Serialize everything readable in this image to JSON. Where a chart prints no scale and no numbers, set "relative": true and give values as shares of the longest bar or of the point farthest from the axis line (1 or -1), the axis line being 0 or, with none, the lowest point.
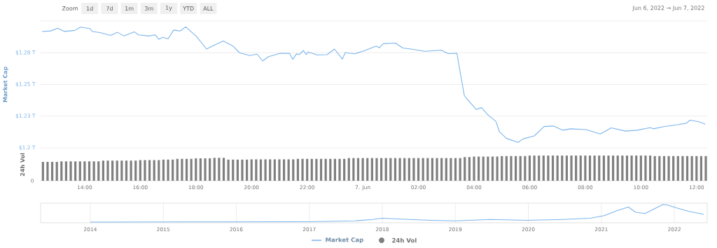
{
  "chart_data": [
    {
      "type": "line",
      "ylabel": "Market Cap",
      "tick_labels": "y",
      "grid": "y",
      "legend": "bottom",
      "marker": "none",
      "annotations": [
        "Zoom",
        "1d",
        "7d",
        "1m",
        "3m",
        "1y",
        "YTD",
        "ALL",
        "Jun 6, 2022 → Jun 7, 2022"
      ],
      "xlim": [
        "2022-06-06T12:25",
        "2022-06-07T12:23"
      ],
      "ylim": [
        1.2,
        1.3
      ],
      "yticks": [
        {
          "value": 1.2,
          "label": "$1.2 T"
        },
        {
          "value": 1.225,
          "label": "$1.23 T"
        },
        {
          "value": 1.25,
          "label": "$1.25 T"
        },
        {
          "value": 1.275,
          "label": "$1.28 T"
        },
        {
          "value": 1.3,
          "label": null
        }
      ],
      "x": [
        "2022-06-06T12:28",
        "2022-06-06T12:47",
        "2022-06-06T13:02",
        "2022-06-06T13:16",
        "2022-06-06T13:39",
        "2022-06-06T13:51",
        "2022-06-06T14:11",
        "2022-06-06T14:17",
        "2022-06-06T14:33",
        "2022-06-06T14:56",
        "2022-06-06T15:11",
        "2022-06-06T15:25",
        "2022-06-06T15:47",
        "2022-06-06T15:56",
        "2022-06-06T16:19",
        "2022-06-06T16:32",
        "2022-06-06T16:40",
        "2022-06-06T16:49",
        "2022-06-06T17:00",
        "2022-06-06T17:12",
        "2022-06-06T17:26",
        "2022-06-06T17:38",
        "2022-06-06T18:01",
        "2022-06-06T18:23",
        "2022-06-06T18:38",
        "2022-06-06T18:59",
        "2022-06-06T19:20",
        "2022-06-06T19:34",
        "2022-06-06T19:56",
        "2022-06-06T20:12",
        "2022-06-06T20:24",
        "2022-06-06T20:36",
        "2022-06-06T21:02",
        "2022-06-06T21:22",
        "2022-06-06T21:29",
        "2022-06-06T21:37",
        "2022-06-06T21:43",
        "2022-06-06T21:52",
        "2022-06-06T21:58",
        "2022-06-06T22:02",
        "2022-06-06T22:22",
        "2022-06-06T22:43",
        "2022-06-06T22:59",
        "2022-06-06T23:16",
        "2022-06-06T23:22",
        "2022-06-06T23:43",
        "2022-06-07T00:03",
        "2022-06-07T00:29",
        "2022-06-07T00:36",
        "2022-06-07T00:44",
        "2022-06-07T01:11",
        "2022-06-07T01:26",
        "2022-06-07T01:44",
        "2022-06-07T02:14",
        "2022-06-07T02:49",
        "2022-06-07T03:04",
        "2022-06-07T03:23",
        "2022-06-07T03:30",
        "2022-06-07T03:39",
        "2022-06-07T03:45",
        "2022-06-07T04:05",
        "2022-06-07T04:16",
        "2022-06-07T04:31",
        "2022-06-07T04:47",
        "2022-06-07T04:55",
        "2022-06-07T05:10",
        "2022-06-07T05:35",
        "2022-06-07T05:46",
        "2022-06-07T06:10",
        "2022-06-07T06:31",
        "2022-06-07T06:51",
        "2022-06-07T07:11",
        "2022-06-07T07:29",
        "2022-06-07T08:02",
        "2022-06-07T08:32",
        "2022-06-07T08:56",
        "2022-06-07T09:27",
        "2022-06-07T09:52",
        "2022-06-07T10:20",
        "2022-06-07T10:27",
        "2022-06-07T10:49",
        "2022-06-07T11:19",
        "2022-06-07T11:38",
        "2022-06-07T11:46",
        "2022-06-07T12:05",
        "2022-06-07T12:19"
      ],
      "series": [
        {
          "name": "Market Cap",
          "color": "#7cb5ec",
          "values": [
            1.2917,
            1.2922,
            1.2943,
            1.2918,
            1.2926,
            1.2952,
            1.2941,
            1.2917,
            1.2909,
            1.2887,
            1.2911,
            1.2882,
            1.2915,
            1.2891,
            1.2882,
            1.2891,
            1.2857,
            1.2872,
            1.2859,
            1.2929,
            1.2921,
            1.2954,
            1.2879,
            1.2779,
            1.2806,
            1.2843,
            1.2802,
            1.275,
            1.2728,
            1.2739,
            1.2685,
            1.2718,
            1.2746,
            1.2744,
            1.2698,
            1.2741,
            1.2735,
            1.2768,
            1.2735,
            1.2756,
            1.2732,
            1.2735,
            1.2779,
            1.27,
            1.275,
            1.2742,
            1.2765,
            1.2802,
            1.2789,
            1.2821,
            1.2826,
            1.2787,
            1.2779,
            1.2761,
            1.2771,
            1.2743,
            1.2746,
            1.2598,
            1.2413,
            1.2385,
            1.2302,
            1.2317,
            1.2256,
            1.2209,
            1.2126,
            1.2074,
            1.2043,
            1.2071,
            1.2094,
            1.2168,
            1.2172,
            1.2139,
            1.215,
            1.2144,
            1.2109,
            1.2157,
            1.2132,
            1.2139,
            1.2159,
            1.215,
            1.2167,
            1.2182,
            1.2194,
            1.2218,
            1.2206,
            1.2187
          ]
        }
      ]
    },
    {
      "type": "bar",
      "relative": true,
      "ylabel": "24h Vol",
      "tick_labels": "x",
      "legend": "bottom",
      "annotations": [
        "0"
      ],
      "xlim": [
        "2022-06-06T12:25",
        "2022-06-07T12:23"
      ],
      "xticks": [
        {
          "value": "2022-06-06T14:00",
          "label": "14:00"
        },
        {
          "value": "2022-06-06T16:00",
          "label": "16:00"
        },
        {
          "value": "2022-06-06T18:00",
          "label": "18:00"
        },
        {
          "value": "2022-06-06T20:00",
          "label": "20:00"
        },
        {
          "value": "2022-06-06T22:00",
          "label": "22:00"
        },
        {
          "value": "2022-06-07T00:00",
          "label": "7. Jun"
        },
        {
          "value": "2022-06-07T02:00",
          "label": "02:00"
        },
        {
          "value": "2022-06-07T04:00",
          "label": "04:00"
        },
        {
          "value": "2022-06-07T06:00",
          "label": "06:00"
        },
        {
          "value": "2022-06-07T08:00",
          "label": "08:00"
        },
        {
          "value": "2022-06-07T10:00",
          "label": "10:00"
        },
        {
          "value": "2022-06-07T12:00",
          "label": "12:00"
        }
      ],
      "x": [
        "2022-06-06T12:30",
        "2022-06-06T12:40",
        "2022-06-06T12:50",
        "2022-06-06T13:00",
        "2022-06-06T13:10",
        "2022-06-06T13:20",
        "2022-06-06T13:30",
        "2022-06-06T13:40",
        "2022-06-06T13:50",
        "2022-06-06T14:00",
        "2022-06-06T14:10",
        "2022-06-06T14:20",
        "2022-06-06T14:30",
        "2022-06-06T14:40",
        "2022-06-06T14:50",
        "2022-06-06T15:00",
        "2022-06-06T15:10",
        "2022-06-06T15:20",
        "2022-06-06T15:30",
        "2022-06-06T15:40",
        "2022-06-06T15:50",
        "2022-06-06T16:00",
        "2022-06-06T16:10",
        "2022-06-06T16:20",
        "2022-06-06T16:30",
        "2022-06-06T16:40",
        "2022-06-06T16:50",
        "2022-06-06T17:00",
        "2022-06-06T17:10",
        "2022-06-06T17:20",
        "2022-06-06T17:30",
        "2022-06-06T17:40",
        "2022-06-06T17:50",
        "2022-06-06T18:00",
        "2022-06-06T18:10",
        "2022-06-06T18:20",
        "2022-06-06T18:30",
        "2022-06-06T18:40",
        "2022-06-06T18:50",
        "2022-06-06T19:00",
        "2022-06-06T19:10",
        "2022-06-06T19:20",
        "2022-06-06T19:30",
        "2022-06-06T19:40",
        "2022-06-06T19:50",
        "2022-06-06T20:00",
        "2022-06-06T20:10",
        "2022-06-06T20:20",
        "2022-06-06T20:30",
        "2022-06-06T20:40",
        "2022-06-06T20:50",
        "2022-06-06T21:00",
        "2022-06-06T21:10",
        "2022-06-06T21:20",
        "2022-06-06T21:30",
        "2022-06-06T21:40",
        "2022-06-06T21:50",
        "2022-06-06T22:00",
        "2022-06-06T22:10",
        "2022-06-06T22:20",
        "2022-06-06T22:30",
        "2022-06-06T22:40",
        "2022-06-06T22:50",
        "2022-06-06T23:00",
        "2022-06-06T23:10",
        "2022-06-06T23:20",
        "2022-06-06T23:30",
        "2022-06-06T23:40",
        "2022-06-06T23:50",
        "2022-06-07T00:00",
        "2022-06-07T00:10",
        "2022-06-07T00:20",
        "2022-06-07T00:30",
        "2022-06-07T00:40",
        "2022-06-07T00:50",
        "2022-06-07T01:00",
        "2022-06-07T01:10",
        "2022-06-07T01:20",
        "2022-06-07T01:30",
        "2022-06-07T01:40",
        "2022-06-07T01:50",
        "2022-06-07T02:00",
        "2022-06-07T02:10",
        "2022-06-07T02:20",
        "2022-06-07T02:30",
        "2022-06-07T02:40",
        "2022-06-07T02:50",
        "2022-06-07T03:00",
        "2022-06-07T03:10",
        "2022-06-07T03:20",
        "2022-06-07T03:30",
        "2022-06-07T03:40",
        "2022-06-07T03:50",
        "2022-06-07T04:00",
        "2022-06-07T04:10",
        "2022-06-07T04:20",
        "2022-06-07T04:30",
        "2022-06-07T04:40",
        "2022-06-07T04:50",
        "2022-06-07T05:00",
        "2022-06-07T05:10",
        "2022-06-07T05:20",
        "2022-06-07T05:30",
        "2022-06-07T05:40",
        "2022-06-07T05:50",
        "2022-06-07T06:00",
        "2022-06-07T06:10",
        "2022-06-07T06:20",
        "2022-06-07T06:30",
        "2022-06-07T06:40",
        "2022-06-07T06:50",
        "2022-06-07T07:00",
        "2022-06-07T07:10",
        "2022-06-07T07:20",
        "2022-06-07T07:30",
        "2022-06-07T07:40",
        "2022-06-07T07:50",
        "2022-06-07T08:00",
        "2022-06-07T08:10",
        "2022-06-07T08:20",
        "2022-06-07T08:30",
        "2022-06-07T08:40",
        "2022-06-07T08:50",
        "2022-06-07T09:00",
        "2022-06-07T09:10",
        "2022-06-07T09:20",
        "2022-06-07T09:30",
        "2022-06-07T09:40",
        "2022-06-07T09:50",
        "2022-06-07T10:00",
        "2022-06-07T10:10",
        "2022-06-07T10:20",
        "2022-06-07T10:30",
        "2022-06-07T10:40",
        "2022-06-07T10:50",
        "2022-06-07T11:00",
        "2022-06-07T11:10",
        "2022-06-07T11:20",
        "2022-06-07T11:30",
        "2022-06-07T11:40",
        "2022-06-07T11:50",
        "2022-06-07T12:00",
        "2022-06-07T12:10",
        "2022-06-07T12:20"
      ],
      "series": [
        {
          "name": "24h Vol",
          "color": "#7f7f7f",
          "values": [
            0.75,
            0.75,
            0.75,
            0.75,
            0.77,
            0.77,
            0.77,
            0.77,
            0.77,
            0.77,
            0.77,
            0.77,
            0.77,
            0.8,
            0.8,
            0.8,
            0.8,
            0.8,
            0.8,
            0.8,
            0.8,
            0.82,
            0.82,
            0.82,
            0.82,
            0.82,
            0.84,
            0.84,
            0.84,
            0.87,
            0.87,
            0.87,
            0.87,
            0.89,
            0.89,
            0.89,
            0.89,
            0.91,
            0.91,
            0.91,
            0.84,
            0.84,
            0.84,
            0.84,
            0.84,
            0.85,
            0.85,
            0.85,
            0.85,
            0.85,
            0.85,
            0.85,
            0.85,
            0.85,
            0.85,
            0.87,
            0.87,
            0.87,
            0.87,
            0.87,
            0.87,
            0.87,
            0.87,
            0.87,
            0.87,
            0.87,
            0.9,
            0.9,
            0.9,
            0.9,
            0.9,
            0.9,
            0.9,
            0.9,
            0.9,
            0.9,
            0.9,
            0.9,
            0.9,
            0.9,
            0.9,
            0.9,
            0.9,
            0.9,
            0.9,
            0.9,
            0.9,
            0.9,
            0.9,
            0.9,
            0.9,
            0.94,
            0.94,
            0.96,
            0.96,
            0.96,
            0.96,
            0.96,
            0.96,
            0.98,
            0.98,
            0.98,
            0.98,
            0.98,
            0.98,
            1,
            1,
            1,
            1,
            1,
            1,
            1,
            1,
            1,
            1,
            1,
            1,
            1,
            1,
            1,
            1,
            1,
            1,
            1,
            1,
            1,
            1,
            1,
            1,
            1,
            1,
            1,
            0.98,
            0.98,
            0.98,
            0.98,
            0.98,
            0.98,
            0.98,
            0.98,
            0.98,
            0.98,
            0.98,
            0.98
          ]
        }
      ]
    },
    {
      "type": "line",
      "relative": true,
      "tick_labels": "x",
      "grid": "x",
      "marker": "none",
      "xlim": [
        2013.32,
        2022.45
      ],
      "xticks": [
        2014,
        2015,
        2016,
        2017,
        2018,
        2019,
        2020,
        2021,
        2022
      ],
      "x": [
        2014.0,
        2017.0,
        2017.62,
        2017.87,
        2018.0,
        2018.25,
        2018.67,
        2019.0,
        2019.48,
        2019.98,
        2020.48,
        2020.85,
        2021.04,
        2021.22,
        2021.37,
        2021.47,
        2021.6,
        2021.84,
        2021.9,
        2022.03,
        2022.2,
        2022.4
      ],
      "series": [
        {
          "color": "#7cb5ec",
          "values": [
            0,
            0.02,
            0.07,
            0.15,
            0.22,
            0.17,
            0.1,
            0.07,
            0.15,
            0.1,
            0.15,
            0.22,
            0.37,
            0.66,
            0.86,
            0.56,
            0.49,
            1.0,
            0.98,
            0.81,
            0.61,
            0.45
          ]
        }
      ]
    }
  ]
}
